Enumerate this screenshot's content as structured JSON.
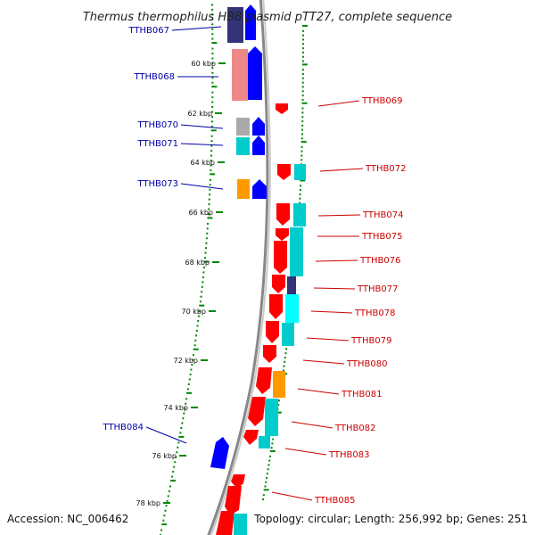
{
  "title": "Thermus thermophilus HB8 plasmid pTT27, complete sequence",
  "footer": {
    "accession": "Accession: NC_006462",
    "topology": "Topology: circular; Length: 256,992 bp; Genes: 251"
  },
  "ticks": [
    "60 kbp",
    "62 kbp",
    "64 kbp",
    "66 kbp",
    "68 kbp",
    "70 kbp",
    "72 kbp",
    "74 kbp",
    "76 kbp",
    "78 kbp"
  ],
  "labels_left": [
    "TTHB067",
    "TTHB068",
    "TTHB070",
    "TTHB071",
    "TTHB073",
    "TTHB084"
  ],
  "labels_right": [
    "TTHB069",
    "TTHB072",
    "TTHB074",
    "TTHB075",
    "TTHB076",
    "TTHB077",
    "TTHB078",
    "TTHB079",
    "TTHB080",
    "TTHB081",
    "TTHB082",
    "TTHB083",
    "TTHB085"
  ],
  "colors": {
    "left_label": "#0000aa",
    "right_label": "#cc0000",
    "reverse_strand": "#ff0000",
    "forward_strand": "#0000ff",
    "backbone": "#888888",
    "gc_dots": "#008800",
    "cyan": "#00cccc",
    "orange": "#ff9900",
    "pink": "#ee8888",
    "grey": "#aaaaaa",
    "navy": "#333377"
  }
}
